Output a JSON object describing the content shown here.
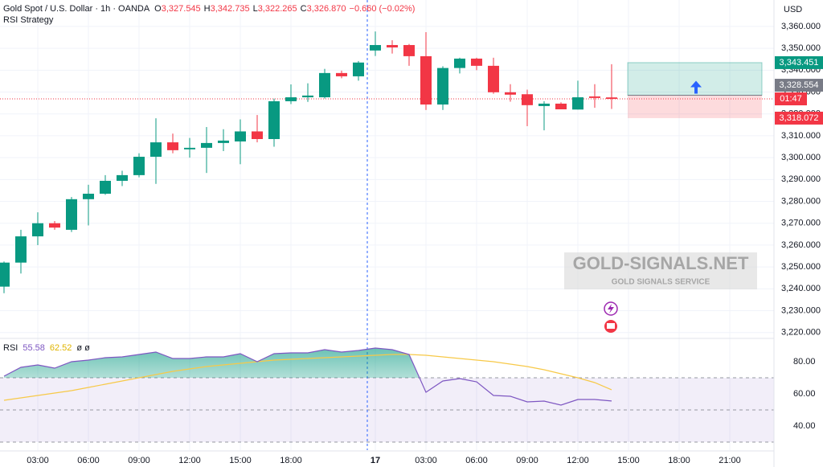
{
  "chart_data": {
    "type": "candlestick",
    "header": {
      "symbol": "Gold Spot / U.S. Dollar · 1h · OANDA",
      "ohlc": [
        {
          "key": "O",
          "value": "3,327.545"
        },
        {
          "key": "H",
          "value": "3,342.735"
        },
        {
          "key": "L",
          "value": "3,322.265"
        },
        {
          "key": "C",
          "value": "3,326.870"
        }
      ],
      "change": "−0.660 (−0.02%)",
      "strategy": "RSI Strategy",
      "currency": "USD"
    },
    "up_color": "#089981",
    "down_color": "#f23645",
    "open": [
      3241,
      3252,
      3264,
      3270,
      3267,
      3281,
      3283.5,
      3289.4,
      3292,
      3300.4,
      3307,
      3303.8,
      3304.5,
      3306.7,
      3307.4,
      3312,
      3308.5,
      3325.8,
      3327.6,
      3327.6,
      3338.7,
      3337.2,
      3349,
      3351.5,
      3351.5,
      3346.4,
      3324.3,
      3341,
      3345.3,
      3342,
      3329.9,
      3329,
      3323.6,
      3324.7,
      3322,
      3328,
      3327.545
    ],
    "high": [
      3252.5,
      3267,
      3275,
      3271,
      3282,
      3287.6,
      3292,
      3294,
      3302,
      3318,
      3311,
      3309,
      3314,
      3313,
      3317.5,
      3319.5,
      3327,
      3333.5,
      3334,
      3340.6,
      3339.8,
      3344.2,
      3357.7,
      3353.7,
      3352,
      3357.4,
      3341.8,
      3345.7,
      3345.7,
      3345.7,
      3333.6,
      3331.1,
      3325.8,
      3325.3,
      3335.2,
      3333.6,
      3342.735
    ],
    "low": [
      3238,
      3247,
      3260,
      3267,
      3266,
      3269,
      3283,
      3287,
      3291,
      3288,
      3302,
      3300,
      3293,
      3303,
      3297,
      3307,
      3305,
      3324.5,
      3325.5,
      3327,
      3336.3,
      3335.2,
      3346.5,
      3347.6,
      3342,
      3321.8,
      3321.8,
      3338.5,
      3340,
      3329.2,
      3325.6,
      3314.4,
      3312.5,
      3322.1,
      3322,
      3322.8,
      3322.265
    ],
    "close": [
      3252,
      3264,
      3270,
      3268,
      3281,
      3283.5,
      3289.4,
      3292,
      3300.4,
      3307,
      3303.4,
      3304.5,
      3306.7,
      3307.8,
      3312,
      3308.5,
      3325.8,
      3327.6,
      3328.4,
      3338.7,
      3337.2,
      3343.5,
      3351.5,
      3350.4,
      3346.4,
      3324.3,
      3341,
      3345.3,
      3342,
      3329.9,
      3328.8,
      3324,
      3324.7,
      3322.1,
      3327.6,
      3327.3,
      3326.87
    ],
    "xlim": [
      -0.238,
      45.62
    ],
    "xticks": [
      {
        "value": 2,
        "label": "03:00"
      },
      {
        "value": 5,
        "label": "06:00"
      },
      {
        "value": 8,
        "label": "09:00"
      },
      {
        "value": 11,
        "label": "12:00"
      },
      {
        "value": 14,
        "label": "15:00"
      },
      {
        "value": 17,
        "label": "18:00"
      },
      {
        "value": 22,
        "label": "17"
      },
      {
        "value": 25,
        "label": "03:00"
      },
      {
        "value": 28,
        "label": "06:00"
      },
      {
        "value": 31,
        "label": "09:00"
      },
      {
        "value": 34,
        "label": "12:00"
      },
      {
        "value": 37,
        "label": "15:00"
      },
      {
        "value": 40,
        "label": "18:00"
      },
      {
        "value": 43,
        "label": "21:00"
      }
    ],
    "ylim": [
      3217.7,
      3372.1
    ],
    "yticks": [
      {
        "value": 3360,
        "label": "3,360.000"
      },
      {
        "value": 3350,
        "label": "3,350.000"
      },
      {
        "value": 3340,
        "label": "3,340.000"
      },
      {
        "value": 3330,
        "label": "3,330.000"
      },
      {
        "value": 3320,
        "label": "3,320.000"
      },
      {
        "value": 3310,
        "label": "3,310.000"
      },
      {
        "value": 3300,
        "label": "3,300.000"
      },
      {
        "value": 3290,
        "label": "3,290.000"
      },
      {
        "value": 3280,
        "label": "3,280.000"
      },
      {
        "value": 3270,
        "label": "3,270.000"
      },
      {
        "value": 3260,
        "label": "3,260.000"
      },
      {
        "value": 3250,
        "label": "3,250.000"
      },
      {
        "value": 3240,
        "label": "3,240.000"
      },
      {
        "value": 3230,
        "label": "3,230.000"
      },
      {
        "value": 3220,
        "label": "3,220.000"
      }
    ],
    "position": {
      "target": {
        "value": 3343.451,
        "label": "3,343.451",
        "color": "#089981"
      },
      "entry": {
        "value": 3328.554,
        "label": "3,328.554",
        "color": "#787b86"
      },
      "stop": {
        "value": 3318.072,
        "label": "3,318.072",
        "color": "#f23645"
      }
    },
    "countdown": "01:47",
    "rsi": {
      "name": "RSI",
      "color": "#7e57c2",
      "values": [
        71,
        76.5,
        78,
        76,
        80,
        81,
        82.5,
        83,
        84.5,
        86,
        82,
        82,
        83,
        83,
        85,
        80,
        85,
        85.5,
        85.5,
        87.5,
        86,
        87,
        88.5,
        87.5,
        84.5,
        61,
        68,
        69.5,
        67.5,
        59,
        58.5,
        55,
        55.5,
        53,
        56.5,
        56.5,
        55.58
      ]
    },
    "rsi_ma": {
      "color": "#f7c948",
      "values": [
        56,
        57.5,
        59,
        60.5,
        62,
        64,
        66,
        68,
        70,
        72,
        74,
        75.5,
        77,
        78,
        79,
        80,
        81,
        81.5,
        82,
        82.5,
        83,
        83.5,
        84,
        84.5,
        84.5,
        84,
        83,
        82,
        81,
        80,
        78.5,
        77,
        75,
        72.5,
        70,
        67,
        62.52
      ]
    },
    "rsi_extra": "ø ø",
    "rsi_ylim": [
      25,
      95
    ],
    "rsi_yticks": [
      {
        "value": 80,
        "label": "80.00"
      },
      {
        "value": 60,
        "label": "60.00"
      },
      {
        "value": 40,
        "label": "40.00"
      }
    ],
    "rsi_bands": [
      70,
      50,
      30
    ],
    "watermark": {
      "title": "GOLD-SIGNALS.NET",
      "subtitle": "GOLD SIGNALS SERVICE"
    }
  }
}
